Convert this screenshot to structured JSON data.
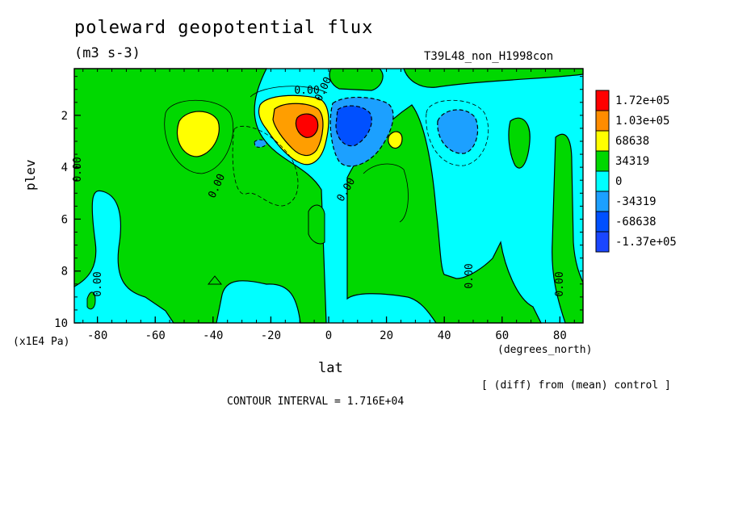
{
  "chart_data": {
    "type": "heatmap",
    "title": "poleward geopotential flux",
    "units": "(m3 s-3)",
    "run_id": "T39L48_non_H1998con",
    "xlabel": "lat",
    "xunit": "(degrees_north)",
    "ylabel": "plev",
    "yunit": "(x1E4 Pa)",
    "note": "[ (diff) from (mean) control ]",
    "contour_interval_text": "CONTOUR INTERVAL = 1.716E+04",
    "xlim": [
      -88,
      88
    ],
    "ylim": [
      10,
      0.2
    ],
    "x_ticks": [
      -80,
      -60,
      -40,
      -20,
      0,
      20,
      40,
      60,
      80
    ],
    "y_ticks": [
      2,
      4,
      6,
      8,
      10
    ],
    "contour_labels": [
      "0.00",
      "0.00",
      "0.00",
      "0.00",
      "0.00",
      "0.00",
      "0.00",
      "0.00"
    ],
    "legend": [
      {
        "label": "1.72e+05",
        "color": "#ff0000"
      },
      {
        "label": "1.03e+05",
        "color": "#ff8c00"
      },
      {
        "label": "68638",
        "color": "#ffff00"
      },
      {
        "label": "34319",
        "color": "#00d800"
      },
      {
        "label": "0",
        "color": "#00ffff"
      },
      {
        "label": "-34319",
        "color": "#1ca0ff"
      },
      {
        "label": "-68638",
        "color": "#0050ff"
      },
      {
        "label": "-1.37e+05",
        "color": "#1a46ff"
      }
    ],
    "colors": {
      "green": "#00d800",
      "cyan": "#00ffff",
      "yellow": "#ffff00",
      "orange": "#ff9e00",
      "red": "#ff0000",
      "lightblue": "#1ca0ff",
      "blue": "#0050ff"
    }
  }
}
